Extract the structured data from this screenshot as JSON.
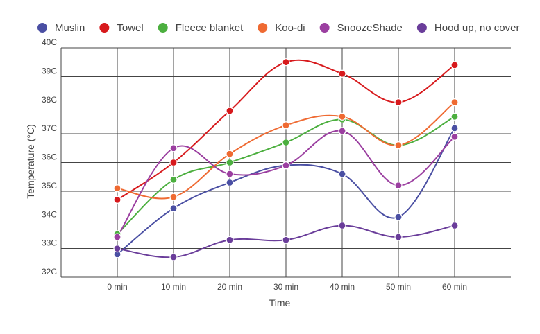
{
  "chart_data": {
    "type": "line",
    "xlabel": "Time",
    "ylabel": "Temperature (°C)",
    "categories": [
      "0 min",
      "10 min",
      "20 min",
      "30 min",
      "40 min",
      "50 min",
      "60 min"
    ],
    "ylim": [
      32,
      40
    ],
    "y_ticks": [
      32,
      33,
      34,
      35,
      36,
      37,
      38,
      39,
      40
    ],
    "y_tick_labels": [
      "32C",
      "33C",
      "34C",
      "35C",
      "36C",
      "37C",
      "38C",
      "39C",
      "40C"
    ],
    "grid": true,
    "legend_position": "top",
    "series": [
      {
        "name": "Muslin",
        "color": "#4a4fa3",
        "values": [
          32.8,
          34.4,
          35.3,
          35.9,
          35.6,
          34.1,
          37.2
        ]
      },
      {
        "name": "Towel",
        "color": "#d7191c",
        "values": [
          34.7,
          36.0,
          37.8,
          39.5,
          39.1,
          38.1,
          39.4
        ]
      },
      {
        "name": "Fleece blanket",
        "color": "#4caf3f",
        "values": [
          33.5,
          35.4,
          36.0,
          36.7,
          37.5,
          36.6,
          37.6
        ]
      },
      {
        "name": "Koo-di",
        "color": "#ef6a32",
        "values": [
          35.1,
          34.8,
          36.3,
          37.3,
          37.6,
          36.6,
          38.1
        ]
      },
      {
        "name": "SnoozeShade",
        "color": "#9b3fa0",
        "values": [
          33.4,
          36.5,
          35.6,
          35.9,
          37.1,
          35.2,
          36.9
        ]
      },
      {
        "name": "Hood up, no cover",
        "color": "#6a3d9a",
        "values": [
          33.0,
          32.7,
          33.3,
          33.3,
          33.8,
          33.4,
          33.8
        ]
      }
    ]
  }
}
